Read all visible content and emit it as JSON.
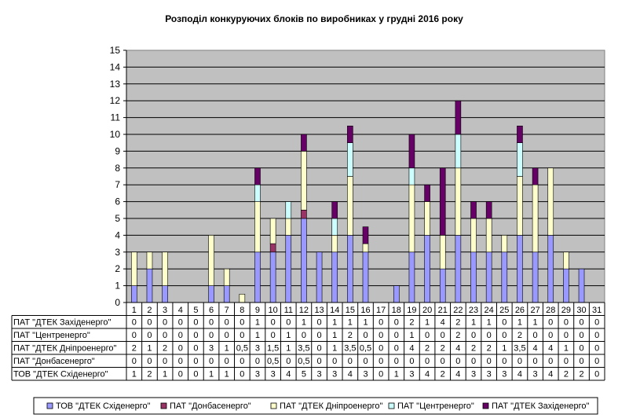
{
  "chart_data": {
    "type": "bar",
    "stacked": true,
    "title": "Розподіл конкуруючих  блоків по виробниках  у грудні 2016 року",
    "categories": [
      "1",
      "2",
      "3",
      "4",
      "5",
      "6",
      "7",
      "8",
      "9",
      "10",
      "11",
      "12",
      "13",
      "14",
      "15",
      "16",
      "17",
      "18",
      "19",
      "20",
      "21",
      "22",
      "23",
      "24",
      "25",
      "26",
      "27",
      "28",
      "29",
      "30",
      "31"
    ],
    "yticks": [
      "0",
      "1",
      "2",
      "3",
      "4",
      "5",
      "6",
      "7",
      "8",
      "9",
      "10",
      "11",
      "12",
      "13",
      "14",
      "15"
    ],
    "ylim": [
      0,
      15
    ],
    "grid": true,
    "legend_position": "bottom",
    "series": [
      {
        "name": "ТОВ \"ДТЕК Східенерго\"",
        "color": "#9999ff",
        "values": [
          1,
          2,
          1,
          0,
          0,
          1,
          1,
          0,
          3,
          3,
          4,
          5,
          3,
          3,
          4,
          3,
          0,
          1,
          3,
          4,
          2,
          4,
          3,
          3,
          3,
          4,
          3,
          4,
          2,
          2,
          0
        ],
        "labels": [
          "1",
          "2",
          "1",
          "0",
          "0",
          "1",
          "1",
          "0",
          "3",
          "3",
          "4",
          "5",
          "3",
          "3",
          "4",
          "3",
          "0",
          "1",
          "3",
          "4",
          "2",
          "4",
          "3",
          "3",
          "3",
          "4",
          "3",
          "4",
          "2",
          "2",
          "0"
        ]
      },
      {
        "name": "ПАТ \"Донбасенерго\"",
        "color": "#993366",
        "values": [
          0,
          0,
          0,
          0,
          0,
          0,
          0,
          0,
          0,
          0.5,
          0,
          0.5,
          0,
          0,
          0,
          0,
          0,
          0,
          0,
          0,
          0,
          0,
          0,
          0,
          0,
          0,
          0,
          0,
          0,
          0,
          0
        ],
        "labels": [
          "0",
          "0",
          "0",
          "0",
          "0",
          "0",
          "0",
          "0",
          "0",
          "0,5",
          "0",
          "0,5",
          "0",
          "0",
          "0",
          "0",
          "0",
          "0",
          "0",
          "0",
          "0",
          "0",
          "0",
          "0",
          "0",
          "0",
          "0",
          "0",
          "0",
          "0",
          "0"
        ]
      },
      {
        "name": "ПАТ \"ДТЕК Дніпроенерго\"",
        "color": "#ffffcc",
        "values": [
          2,
          1,
          2,
          0,
          0,
          3,
          1,
          0.5,
          3,
          1.5,
          1,
          3.5,
          0,
          1,
          3.5,
          0.5,
          0,
          0,
          4,
          2,
          2,
          4,
          2,
          2,
          1,
          3.5,
          4,
          4,
          1,
          0,
          0
        ],
        "labels": [
          "2",
          "1",
          "2",
          "0",
          "0",
          "3",
          "1",
          "0,5",
          "3",
          "1,5",
          "1",
          "3,5",
          "0",
          "1",
          "3,5",
          "0,5",
          "0",
          "0",
          "4",
          "2",
          "2",
          "4",
          "2",
          "2",
          "1",
          "3,5",
          "4",
          "4",
          "1",
          "0",
          "0"
        ]
      },
      {
        "name": "ПАТ \"Центренерго\"",
        "color": "#ccffff",
        "values": [
          0,
          0,
          0,
          0,
          0,
          0,
          0,
          0,
          1,
          0,
          1,
          0,
          0,
          1,
          2,
          0,
          0,
          0,
          1,
          0,
          0,
          2,
          0,
          0,
          0,
          2,
          0,
          0,
          0,
          0,
          0
        ],
        "labels": [
          "0",
          "0",
          "0",
          "0",
          "0",
          "0",
          "0",
          "0",
          "1",
          "0",
          "1",
          "0",
          "0",
          "1",
          "2",
          "0",
          "0",
          "0",
          "1",
          "0",
          "0",
          "2",
          "0",
          "0",
          "0",
          "2",
          "0",
          "0",
          "0",
          "0",
          "0"
        ]
      },
      {
        "name": "ПАТ \"ДТЕК Західенерго\"",
        "color": "#660066",
        "values": [
          0,
          0,
          0,
          0,
          0,
          0,
          0,
          0,
          1,
          0,
          0,
          1,
          0,
          1,
          1,
          1,
          0,
          0,
          2,
          1,
          4,
          2,
          1,
          1,
          0,
          1,
          1,
          0,
          0,
          0,
          0
        ],
        "labels": [
          "0",
          "0",
          "0",
          "0",
          "0",
          "0",
          "0",
          "0",
          "1",
          "0",
          "0",
          "1",
          "0",
          "1",
          "1",
          "1",
          "0",
          "0",
          "2",
          "1",
          "4",
          "2",
          "1",
          "1",
          "0",
          "1",
          "1",
          "0",
          "0",
          "0",
          "0"
        ]
      }
    ],
    "table_row_order": [
      4,
      3,
      2,
      1,
      0
    ],
    "legend_order": [
      0,
      1,
      2,
      3,
      4
    ]
  }
}
